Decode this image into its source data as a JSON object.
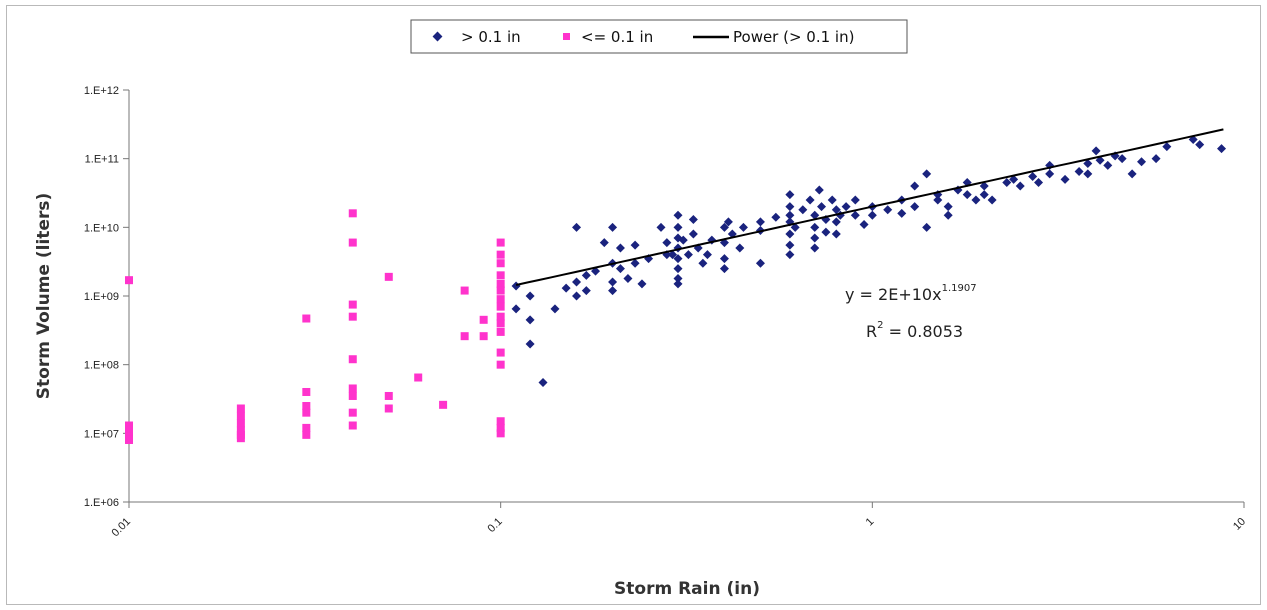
{
  "chart_data": {
    "type": "scatter",
    "x_scale": "log",
    "y_scale": "log",
    "xlim": [
      0.01,
      10
    ],
    "ylim": [
      1000000,
      1000000000000
    ],
    "xlabel": "Storm Rain (in)",
    "ylabel": "Storm Volume (liters)",
    "x_ticks": [
      "0.01",
      "0.1",
      "1",
      "10"
    ],
    "y_ticks": [
      "1.E+06",
      "1.E+07",
      "1.E+08",
      "1.E+09",
      "1.E+10",
      "1.E+11",
      "1.E+12"
    ],
    "grid": false,
    "legend_position": "top-center",
    "colors": {
      "series_gt": "#1a237e",
      "series_le": "#ff33cc",
      "trend": "#000000"
    },
    "series": [
      {
        "name": "> 0.1 in",
        "marker": "diamond",
        "points": [
          [
            0.11,
            1400000000.0
          ],
          [
            0.11,
            650000000.0
          ],
          [
            0.12,
            1000000000.0
          ],
          [
            0.12,
            450000000.0
          ],
          [
            0.12,
            200000000.0
          ],
          [
            0.13,
            55000000.0
          ],
          [
            0.14,
            650000000.0
          ],
          [
            0.15,
            1300000000.0
          ],
          [
            0.16,
            1000000000.0
          ],
          [
            0.16,
            1600000000.0
          ],
          [
            0.17,
            2000000000.0
          ],
          [
            0.17,
            1200000000.0
          ],
          [
            0.18,
            2300000000.0
          ],
          [
            0.16,
            10000000000.0
          ],
          [
            0.19,
            6000000000.0
          ],
          [
            0.2,
            3000000000.0
          ],
          [
            0.2,
            1600000000.0
          ],
          [
            0.2,
            1200000000.0
          ],
          [
            0.21,
            2500000000.0
          ],
          [
            0.2,
            10000000000.0
          ],
          [
            0.21,
            5000000000.0
          ],
          [
            0.22,
            1800000000.0
          ],
          [
            0.23,
            5500000000.0
          ],
          [
            0.23,
            3000000000.0
          ],
          [
            0.24,
            1500000000.0
          ],
          [
            0.25,
            3500000000.0
          ],
          [
            0.27,
            10000000000.0
          ],
          [
            0.28,
            6000000000.0
          ],
          [
            0.28,
            4000000000.0
          ],
          [
            0.29,
            4000000000.0
          ],
          [
            0.3,
            15000000000.0
          ],
          [
            0.3,
            10000000000.0
          ],
          [
            0.3,
            7000000000.0
          ],
          [
            0.3,
            5000000000.0
          ],
          [
            0.3,
            3500000000.0
          ],
          [
            0.3,
            2500000000.0
          ],
          [
            0.3,
            1800000000.0
          ],
          [
            0.3,
            1500000000.0
          ],
          [
            0.31,
            6500000000.0
          ],
          [
            0.32,
            4000000000.0
          ],
          [
            0.33,
            13000000000.0
          ],
          [
            0.33,
            8000000000.0
          ],
          [
            0.34,
            5000000000.0
          ],
          [
            0.35,
            3000000000.0
          ],
          [
            0.36,
            4000000000.0
          ],
          [
            0.37,
            6500000000.0
          ],
          [
            0.4,
            3500000000.0
          ],
          [
            0.4,
            2500000000.0
          ],
          [
            0.4,
            6000000000.0
          ],
          [
            0.4,
            10000000000.0
          ],
          [
            0.41,
            12000000000.0
          ],
          [
            0.42,
            8000000000.0
          ],
          [
            0.44,
            5000000000.0
          ],
          [
            0.45,
            10000000000.0
          ],
          [
            0.5,
            9000000000.0
          ],
          [
            0.5,
            3000000000.0
          ],
          [
            0.5,
            12000000000.0
          ],
          [
            0.55,
            14000000000.0
          ],
          [
            0.6,
            30000000000.0
          ],
          [
            0.6,
            20000000000.0
          ],
          [
            0.6,
            15000000000.0
          ],
          [
            0.6,
            12000000000.0
          ],
          [
            0.6,
            8000000000.0
          ],
          [
            0.6,
            5500000000.0
          ],
          [
            0.6,
            4000000000.0
          ],
          [
            0.62,
            10000000000.0
          ],
          [
            0.65,
            18000000000.0
          ],
          [
            0.68,
            25000000000.0
          ],
          [
            0.7,
            15000000000.0
          ],
          [
            0.7,
            10000000000.0
          ],
          [
            0.7,
            7000000000.0
          ],
          [
            0.7,
            5000000000.0
          ],
          [
            0.72,
            35000000000.0
          ],
          [
            0.73,
            20000000000.0
          ],
          [
            0.75,
            13000000000.0
          ],
          [
            0.75,
            8500000000.0
          ],
          [
            0.78,
            25000000000.0
          ],
          [
            0.8,
            18000000000.0
          ],
          [
            0.8,
            12000000000.0
          ],
          [
            0.8,
            8000000000.0
          ],
          [
            0.82,
            15000000000.0
          ],
          [
            0.85,
            20000000000.0
          ],
          [
            0.9,
            25000000000.0
          ],
          [
            0.9,
            15000000000.0
          ],
          [
            0.95,
            11000000000.0
          ],
          [
            1.0,
            20000000000.0
          ],
          [
            1.0,
            15000000000.0
          ],
          [
            1.1,
            18000000000.0
          ],
          [
            1.2,
            16000000000.0
          ],
          [
            1.2,
            25000000000.0
          ],
          [
            1.3,
            40000000000.0
          ],
          [
            1.3,
            20000000000.0
          ],
          [
            1.4,
            10000000000.0
          ],
          [
            1.4,
            60000000000.0
          ],
          [
            1.5,
            30000000000.0
          ],
          [
            1.5,
            25000000000.0
          ],
          [
            1.6,
            20000000000.0
          ],
          [
            1.6,
            15000000000.0
          ],
          [
            1.7,
            35000000000.0
          ],
          [
            1.8,
            45000000000.0
          ],
          [
            1.8,
            30000000000.0
          ],
          [
            1.9,
            25000000000.0
          ],
          [
            2.0,
            40000000000.0
          ],
          [
            2.0,
            30000000000.0
          ],
          [
            2.1,
            25000000000.0
          ],
          [
            2.3,
            45000000000.0
          ],
          [
            2.4,
            50000000000.0
          ],
          [
            2.5,
            40000000000.0
          ],
          [
            2.7,
            55000000000.0
          ],
          [
            2.8,
            45000000000.0
          ],
          [
            3.0,
            80000000000.0
          ],
          [
            3.0,
            60000000000.0
          ],
          [
            3.3,
            50000000000.0
          ],
          [
            3.6,
            65000000000.0
          ],
          [
            3.8,
            85000000000.0
          ],
          [
            3.8,
            60000000000.0
          ],
          [
            4.0,
            130000000000.0
          ],
          [
            4.1,
            95000000000.0
          ],
          [
            4.3,
            80000000000.0
          ],
          [
            4.5,
            110000000000.0
          ],
          [
            4.7,
            100000000000.0
          ],
          [
            5.0,
            60000000000.0
          ],
          [
            5.3,
            90000000000.0
          ],
          [
            5.8,
            100000000000.0
          ],
          [
            6.2,
            150000000000.0
          ],
          [
            7.3,
            190000000000.0
          ],
          [
            7.6,
            160000000000.0
          ],
          [
            8.7,
            140000000000.0
          ]
        ]
      },
      {
        "name": "<= 0.1 in",
        "marker": "square",
        "points": [
          [
            0.01,
            1700000000.0
          ],
          [
            0.01,
            13000000.0
          ],
          [
            0.01,
            11000000.0
          ],
          [
            0.01,
            10000000.0
          ],
          [
            0.01,
            9000000.0
          ],
          [
            0.01,
            8000000.0
          ],
          [
            0.02,
            23000000.0
          ],
          [
            0.02,
            18000000.0
          ],
          [
            0.02,
            14000000.0
          ],
          [
            0.02,
            11000000.0
          ],
          [
            0.02,
            9500000.0
          ],
          [
            0.02,
            8500000.0
          ],
          [
            0.03,
            470000000.0
          ],
          [
            0.03,
            40000000.0
          ],
          [
            0.03,
            25000000.0
          ],
          [
            0.03,
            20000000.0
          ],
          [
            0.03,
            12000000.0
          ],
          [
            0.03,
            9500000.0
          ],
          [
            0.04,
            16000000000.0
          ],
          [
            0.04,
            6000000000.0
          ],
          [
            0.04,
            750000000.0
          ],
          [
            0.04,
            500000000.0
          ],
          [
            0.04,
            120000000.0
          ],
          [
            0.04,
            45000000.0
          ],
          [
            0.04,
            35000000.0
          ],
          [
            0.04,
            20000000.0
          ],
          [
            0.04,
            13000000.0
          ],
          [
            0.05,
            1900000000.0
          ],
          [
            0.05,
            35000000.0
          ],
          [
            0.05,
            23000000.0
          ],
          [
            0.06,
            65000000.0
          ],
          [
            0.07,
            26000000.0
          ],
          [
            0.08,
            1200000000.0
          ],
          [
            0.08,
            260000000.0
          ],
          [
            0.09,
            450000000.0
          ],
          [
            0.09,
            260000000.0
          ],
          [
            0.1,
            6000000000.0
          ],
          [
            0.1,
            4000000000.0
          ],
          [
            0.1,
            3000000000.0
          ],
          [
            0.1,
            2000000000.0
          ],
          [
            0.1,
            1500000000.0
          ],
          [
            0.1,
            1200000000.0
          ],
          [
            0.1,
            900000000.0
          ],
          [
            0.1,
            700000000.0
          ],
          [
            0.1,
            500000000.0
          ],
          [
            0.1,
            400000000.0
          ],
          [
            0.1,
            300000000.0
          ],
          [
            0.1,
            150000000.0
          ],
          [
            0.1,
            100000000.0
          ],
          [
            0.1,
            15000000.0
          ],
          [
            0.1,
            12000000.0
          ],
          [
            0.1,
            10000000.0
          ]
        ]
      }
    ],
    "trendline": {
      "name": "Power (> 0.1 in)",
      "a": 20000000000,
      "b": 1.1907,
      "x_range": [
        0.11,
        8.8
      ]
    },
    "annotations": [
      {
        "text": "y = 2E+10x",
        "sup": "1.1907"
      },
      {
        "text": "R",
        "sup": "2",
        "text2": " = 0.8053"
      }
    ]
  }
}
